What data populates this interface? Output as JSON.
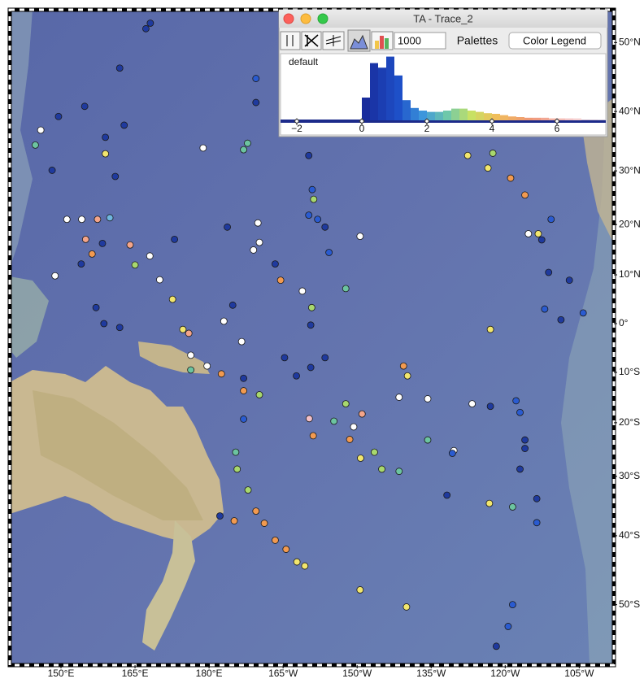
{
  "window": {
    "title": "TA - Trace_2",
    "count_field": "1000",
    "palettes": "Palettes",
    "color_legend": "Color Legend",
    "palette_name": "default"
  },
  "histogram": {
    "type": "histogram",
    "xlim": [
      -2.5,
      7.5
    ],
    "ylim": [
      0,
      100
    ],
    "xticks": [
      {
        "value": -2,
        "label": "−2"
      },
      0,
      2,
      4,
      6
    ],
    "bins": [
      0,
      0.25,
      0.5,
      0.75,
      1,
      1.25,
      1.5,
      1.75,
      2,
      2.25,
      2.5,
      2.75,
      3,
      3.25,
      3.5,
      3.75,
      4,
      4.25,
      4.5,
      4.75,
      5,
      5.25,
      5.5,
      5.75,
      6,
      6.25,
      6.5,
      6.75,
      7,
      7.25,
      7.5
    ],
    "counts": [
      35,
      88,
      81,
      98,
      69,
      31,
      19,
      15,
      13,
      13,
      15,
      18,
      18,
      15,
      13,
      11,
      10,
      8,
      6,
      5,
      4,
      4,
      4,
      3,
      3,
      3,
      3,
      1,
      1,
      1
    ]
  },
  "map": {
    "xticks": [
      {
        "value": 150,
        "label": "150°E"
      },
      {
        "value": 165,
        "label": "165°E"
      },
      {
        "value": 180,
        "label": "180°E"
      },
      {
        "value": 195,
        "label": "165°W"
      },
      {
        "value": 210,
        "label": "150°W"
      },
      {
        "value": 225,
        "label": "135°W"
      },
      {
        "value": 240,
        "label": "120°W"
      },
      {
        "value": 255,
        "label": "105°W"
      }
    ],
    "yticks": [
      {
        "value": 50,
        "label": "50°N"
      },
      {
        "value": 40,
        "label": "40°N"
      },
      {
        "value": 30,
        "label": "30°N"
      },
      {
        "value": 20,
        "label": "20°N"
      },
      {
        "value": 10,
        "label": "10°N"
      },
      {
        "value": 0,
        "label": "0°"
      },
      {
        "value": -10,
        "label": "10°S"
      },
      {
        "value": -20,
        "label": "20°S"
      },
      {
        "value": -30,
        "label": "30°S"
      },
      {
        "value": -40,
        "label": "40°S"
      },
      {
        "value": -50,
        "label": "50°S"
      }
    ],
    "points": {
      "lon": [
        168.1,
        161.9,
        154.8,
        149.5,
        145.9,
        144.8,
        148.2,
        159,
        159,
        161,
        162.8,
        178.8,
        187,
        187.8,
        189.5,
        189.5,
        200.2,
        200.9,
        200.2,
        202,
        203.5,
        201.2,
        183.7,
        189.9,
        190.2,
        189,
        173,
        164,
        158.4,
        154.1,
        148.8,
        151.2,
        154.2,
        157.4,
        159.9,
        155,
        156.3,
        165,
        168,
        170,
        172.6,
        174.7,
        175.9,
        158.7,
        161.9,
        157.1,
        183,
        186.6,
        184.8,
        176.3,
        179.6,
        187,
        187,
        190.2,
        195.3,
        197.7,
        200.6,
        203.5,
        200.6,
        200.8,
        198.9,
        194.5,
        193.4,
        207.7,
        210.6,
        204.3,
        218.5,
        224.3,
        219.4,
        220.2,
        207.7,
        211,
        209.3,
        208.5,
        213.5,
        215,
        218.5,
        210.7,
        205.3,
        200.3,
        201.1,
        224.3,
        229.6,
        229.3,
        233.3,
        237,
        242.2,
        243,
        244,
        244,
        243,
        246.4,
        246.4,
        241.5,
        236.8,
        228.2,
        241.5,
        240.6,
        238.2,
        220,
        210.6,
        237,
        251.3,
        255.8,
        248,
        253,
        248.8,
        247.4,
        244.7,
        246.7,
        249.3,
        244,
        241.1,
        236.5,
        232.4,
        237.5,
        167.2,
        185.4,
        185.7,
        187.9,
        189.5,
        191.2,
        193.4,
        195.6,
        197.8,
        199.4,
        182.2,
        185.1,
        187,
        176.3,
        182.5
      ],
      "lat": [
        52.5,
        46.5,
        40.8,
        39.2,
        37,
        34.5,
        30.1,
        35.8,
        33,
        29,
        37.8,
        34,
        33.7,
        34.8,
        45,
        41.4,
        32.7,
        26.6,
        21.8,
        21,
        19.5,
        24.8,
        19.5,
        20.3,
        16.5,
        15,
        17.1,
        16,
        16.3,
        12.2,
        9.8,
        21,
        21,
        21,
        21.3,
        17.1,
        14.2,
        12,
        13.8,
        9,
        5,
        -1.2,
        -2,
        0,
        -0.8,
        3.3,
        0.5,
        -3.7,
        3.8,
        -6.5,
        -8.7,
        -11.2,
        -13.7,
        -14.5,
        -7,
        -10.7,
        -9,
        -7,
        -0.3,
        3.3,
        6.7,
        8.9,
        12.2,
        7.2,
        17.7,
        14.5,
        -15,
        -15.3,
        -8.7,
        -10.7,
        -16.3,
        -18.3,
        -20.8,
        -23.2,
        -25.6,
        -28.7,
        -29.1,
        -26.7,
        -19.7,
        -19.2,
        -22.5,
        -23.3,
        -25.3,
        -25.8,
        -16.3,
        -16.8,
        -15.7,
        -18,
        -23.3,
        -24.9,
        -28.7,
        -33.9,
        -37.9,
        -35.3,
        -34.7,
        -33.3,
        -50,
        -52.8,
        -55.2,
        -50.3,
        -48,
        -1.2,
        0.8,
        2.2,
        3,
        8.9,
        10.5,
        17,
        18.2,
        18.2,
        21,
        25.6,
        28.7,
        30.5,
        32.7,
        33.1,
        51.8,
        -25.6,
        -28.7,
        -32.4,
        -36,
        -38,
        -40.7,
        -42.1,
        -44,
        -44.6,
        -36.8,
        -37.6,
        -19.3,
        -9.5,
        -10.3
      ],
      "colors": [
        "#1f3a9e",
        "#1f3a9e",
        "#1f3a9e",
        "#1f3a9e",
        "#ffffff",
        "#6cc4a0",
        "#1f3a9e",
        "#1f3a9e",
        "#f2e66e",
        "#1f3a9e",
        "#1f3a9e",
        "#ffffff",
        "#6cc4a0",
        "#6cc4a0",
        "#2a5bd0",
        "#1f3a9e",
        "#1f3a9e",
        "#2a5bd0",
        "#2a5bd0",
        "#2a5bd0",
        "#1f3a9e",
        "#a8d86e",
        "#1f3a9e",
        "#ffffff",
        "#ffffff",
        "#ffffff",
        "#1f3a9e",
        "#f4a58a",
        "#1f3a9e",
        "#1f3a9e",
        "#ffffff",
        "#ffffff",
        "#ffffff",
        "#f4a58a",
        "#6fb7e0",
        "#f4a58a",
        "#f29a50",
        "#a8d86e",
        "#ffffff",
        "#ffffff",
        "#f2e66e",
        "#f2e66e",
        "#f4a58a",
        "#1f3a9e",
        "#1f3a9e",
        "#1f3a9e",
        "#ffffff",
        "#ffffff",
        "#1f3a9e",
        "#ffffff",
        "#ffffff",
        "#1f3a9e",
        "#f29a50",
        "#a8d86e",
        "#1f3a9e",
        "#1f3a9e",
        "#1f3a9e",
        "#1f3a9e",
        "#1f3a9e",
        "#a8d86e",
        "#ffffff",
        "#f29a50",
        "#1f3a9e",
        "#6cc4a0",
        "#ffffff",
        "#2a5bd0",
        "#ffffff",
        "#ffffff",
        "#f29a50",
        "#f2e66e",
        "#a8d86e",
        "#f4a58a",
        "#ffffff",
        "#f29a50",
        "#a8d86e",
        "#a8d86e",
        "#6cc4a0",
        "#f2e66e",
        "#6cc4a0",
        "#f3c0c8",
        "#f29a50",
        "#6cc4a0",
        "#ffffff",
        "#2a5bd0",
        "#ffffff",
        "#1f3a9e",
        "#2a5bd0",
        "#2a5bd0",
        "#1f3a9e",
        "#1f3a9e",
        "#1f3a9e",
        "#1f3a9e",
        "#2a5bd0",
        "#6cc4a0",
        "#f2e66e",
        "#1f3a9e",
        "#2a5bd0",
        "#2a5bd0",
        "#1f3a9e",
        "#f2e66e",
        "#f2e66e",
        "#f2e66e",
        "#1f3a9e",
        "#2a5bd0",
        "#2a5bd0",
        "#1f3a9e",
        "#1f3a9e",
        "#1f3a9e",
        "#ffffff",
        "#f2e66e",
        "#2a5bd0",
        "#f29a50",
        "#f29a50",
        "#f2e66e",
        "#f2e66e",
        "#a8d86e",
        "#1f3a9e",
        "#6cc4a0",
        "#a8d86e",
        "#a8d86e",
        "#f29a50",
        "#f29a50",
        "#f29a50",
        "#f29a50",
        "#f2e66e",
        "#f2e66e",
        "#1f3a9e",
        "#f29a50",
        "#2a5bd0",
        "#6cc4a0",
        "#f29a50"
      ]
    }
  }
}
